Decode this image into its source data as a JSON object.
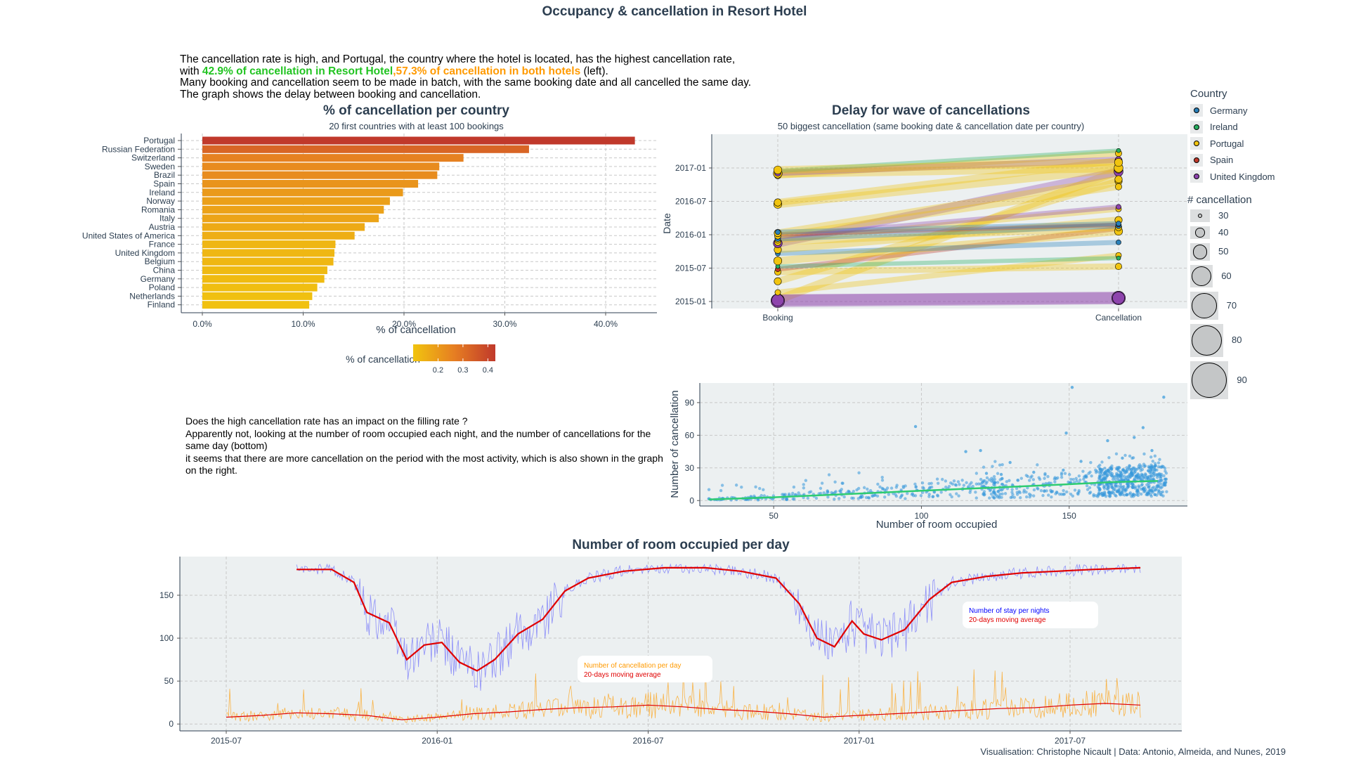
{
  "title": "Occupancy & cancellation in Resort Hotel",
  "intro": {
    "line1": "The cancellation rate is high, and Portugal, the country where the hotel is located, has the highest cancellation rate,",
    "line2_prefix": "with ",
    "line2_green": "42.9% of cancellation in Resort Hotel",
    "line2_sep": ",",
    "line2_orange": "57.3% of cancellation in both hotels",
    "line2_suffix": " (left).",
    "line3": "Many booking and cancellation seem to be made in batch, with the same booking date and all cancelled the same day.",
    "line4": "The graph shows the delay between booking and cancellation."
  },
  "middle_text": {
    "line1": "Does the high cancellation rate has an impact on the filling rate ?",
    "line2": "Apparently not, looking at the number of room occupied each night, and the number of cancellations for the same day (bottom)",
    "line3": "it seems that there are more cancellation on the period with the most activity, which is also shown in the graph on the right."
  },
  "caption": "Visualisation: Christophe Nicault | Data: Antonio, Almeida, and Nunes, 2019",
  "chart_data": [
    {
      "type": "bar",
      "orientation": "horizontal",
      "title": "% of cancellation per country",
      "subtitle": "20 first countries with at least 100 bookings",
      "xlabel": "% of cancellation",
      "categories": [
        "Portugal",
        "Russian Federation",
        "Switzerland",
        "Sweden",
        "Brazil",
        "Spain",
        "Ireland",
        "Norway",
        "Romania",
        "Italy",
        "Austria",
        "United States of America",
        "France",
        "United Kingdom",
        "Belgium",
        "China",
        "Germany",
        "Poland",
        "Netherlands",
        "Finland"
      ],
      "values": [
        0.429,
        0.324,
        0.259,
        0.235,
        0.233,
        0.214,
        0.199,
        0.186,
        0.18,
        0.175,
        0.161,
        0.151,
        0.132,
        0.131,
        0.13,
        0.124,
        0.121,
        0.114,
        0.109,
        0.106
      ],
      "xlim": [
        0,
        0.45
      ],
      "xticks": [
        "0.0%",
        "10.0%",
        "20.0%",
        "30.0%",
        "40.0%"
      ],
      "xtick_values": [
        0,
        0.1,
        0.2,
        0.3,
        0.4
      ],
      "colorbar": {
        "title": "% of cancellation",
        "ticks": [
          "0.2",
          "0.3",
          "0.4"
        ],
        "low": "#f1c40f",
        "mid": "#e67e22",
        "high": "#c0392b"
      }
    },
    {
      "type": "line",
      "title": "Delay for wave of cancellations",
      "subtitle": "50 biggest cancellation (same booking date & cancellation date per country)",
      "ylabel": "Date",
      "xcategories": [
        "Booking",
        "Cancellation"
      ],
      "yticks": [
        "2015-01",
        "2015-07",
        "2016-01",
        "2016-07",
        "2017-01"
      ],
      "legend_country": {
        "title": "Country",
        "items": [
          {
            "name": "Germany",
            "color": "#2980b9"
          },
          {
            "name": "Ireland",
            "color": "#27ae60"
          },
          {
            "name": "Portugal",
            "color": "#f1c40f"
          },
          {
            "name": "Spain",
            "color": "#c0392b"
          },
          {
            "name": "United Kingdom",
            "color": "#8e44ad"
          }
        ]
      },
      "legend_size": {
        "title": "# cancellation",
        "items": [
          "30",
          "40",
          "50",
          "60",
          "70",
          "80",
          "90"
        ]
      },
      "waves": [
        {
          "booking": "2015-01-10",
          "cancellation": "2016-12-15",
          "country": "Portugal",
          "n": 60
        },
        {
          "booking": "2015-01-05",
          "cancellation": "2015-01-20",
          "country": "United Kingdom",
          "n": 90
        },
        {
          "booking": "2015-01-08",
          "cancellation": "2015-01-20",
          "country": "United Kingdom",
          "n": 80
        },
        {
          "booking": "2015-02-20",
          "cancellation": "2015-09-10",
          "country": "Portugal",
          "n": 40
        },
        {
          "booking": "2015-04-20",
          "cancellation": "2016-10-20",
          "country": "Portugal",
          "n": 50
        },
        {
          "booking": "2015-06-10",
          "cancellation": "2015-07-10",
          "country": "Portugal",
          "n": 45
        },
        {
          "booking": "2015-06-25",
          "cancellation": "2016-02-05",
          "country": "Spain",
          "n": 35
        },
        {
          "booking": "2015-07-10",
          "cancellation": "2015-08-25",
          "country": "Ireland",
          "n": 30
        },
        {
          "booking": "2015-08-10",
          "cancellation": "2016-01-20",
          "country": "Portugal",
          "n": 55
        },
        {
          "booking": "2015-09-20",
          "cancellation": "2015-11-20",
          "country": "Germany",
          "n": 35
        },
        {
          "booking": "2015-10-10",
          "cancellation": "2016-03-20",
          "country": "Portugal",
          "n": 50
        },
        {
          "booking": "2015-11-15",
          "cancellation": "2016-12-10",
          "country": "United Kingdom",
          "n": 60
        },
        {
          "booking": "2015-11-20",
          "cancellation": "2016-02-10",
          "country": "Portugal",
          "n": 45
        },
        {
          "booking": "2015-12-01",
          "cancellation": "2016-05-20",
          "country": "Portugal",
          "n": 40
        },
        {
          "booking": "2015-12-10",
          "cancellation": "2016-02-20",
          "country": "Germany",
          "n": 40
        },
        {
          "booking": "2015-12-20",
          "cancellation": "2016-06-01",
          "country": "United Kingdom",
          "n": 35
        },
        {
          "booking": "2015-12-25",
          "cancellation": "2016-09-20",
          "country": "Portugal",
          "n": 45
        },
        {
          "booking": "2016-01-02",
          "cancellation": "2016-02-25",
          "country": "Spain",
          "n": 30
        },
        {
          "booking": "2016-01-10",
          "cancellation": "2016-10-30",
          "country": "Portugal",
          "n": 50
        },
        {
          "booking": "2016-01-15",
          "cancellation": "2016-03-01",
          "country": "Germany",
          "n": 35
        },
        {
          "booking": "2016-06-15",
          "cancellation": "2016-12-25",
          "country": "Portugal",
          "n": 55
        },
        {
          "booking": "2016-06-25",
          "cancellation": "2017-02-10",
          "country": "Portugal",
          "n": 50
        },
        {
          "booking": "2016-11-20",
          "cancellation": "2017-03-20",
          "country": "Portugal",
          "n": 45
        },
        {
          "booking": "2016-12-01",
          "cancellation": "2017-01-01",
          "country": "Portugal",
          "n": 60
        },
        {
          "booking": "2016-12-05",
          "cancellation": "2017-02-15",
          "country": "United Kingdom",
          "n": 45
        },
        {
          "booking": "2016-12-15",
          "cancellation": "2017-04-05",
          "country": "Ireland",
          "n": 30
        },
        {
          "booking": "2016-12-20",
          "cancellation": "2017-02-01",
          "country": "Portugal",
          "n": 55
        }
      ]
    },
    {
      "type": "scatter",
      "xlabel": "Number of room occupied",
      "ylabel": "Number of cancellation",
      "xlim": [
        25,
        190
      ],
      "ylim": [
        -5,
        108
      ],
      "xticks": [
        50,
        100,
        150
      ],
      "yticks": [
        0,
        30,
        60,
        90
      ],
      "trend": [
        [
          28,
          1
        ],
        [
          50,
          3
        ],
        [
          75,
          6
        ],
        [
          100,
          9
        ],
        [
          125,
          12
        ],
        [
          150,
          15
        ],
        [
          165,
          17
        ],
        [
          180,
          18
        ]
      ],
      "outliers": [
        [
          98,
          68
        ],
        [
          115,
          45
        ],
        [
          120,
          46
        ],
        [
          122,
          25
        ],
        [
          127,
          24
        ],
        [
          130,
          35
        ],
        [
          138,
          26
        ],
        [
          148,
          28
        ],
        [
          149,
          62
        ],
        [
          151,
          104
        ],
        [
          154,
          36
        ],
        [
          163,
          55
        ],
        [
          168,
          39
        ],
        [
          172,
          58
        ],
        [
          175,
          67
        ],
        [
          178,
          46
        ],
        [
          182,
          95
        ]
      ]
    },
    {
      "type": "line",
      "title": "Number of room occupied per day",
      "xticks": [
        "2015-07",
        "2016-01",
        "2016-07",
        "2017-01",
        "2017-07"
      ],
      "yticks": [
        0,
        50,
        100,
        150
      ],
      "ylim": [
        -8,
        195
      ],
      "series": [
        {
          "name": "Number of stay per nights",
          "color": "#4040ff"
        },
        {
          "name": "20-days moving average",
          "color": "#e00000",
          "points": [
            [
              "2015-09-01",
              180
            ],
            [
              "2015-10-01",
              180
            ],
            [
              "2015-10-20",
              165
            ],
            [
              "2015-11-01",
              130
            ],
            [
              "2015-11-20",
              118
            ],
            [
              "2015-12-05",
              75
            ],
            [
              "2015-12-20",
              92
            ],
            [
              "2016-01-05",
              95
            ],
            [
              "2016-01-20",
              72
            ],
            [
              "2016-02-05",
              62
            ],
            [
              "2016-02-20",
              75
            ],
            [
              "2016-03-10",
              105
            ],
            [
              "2016-04-01",
              122
            ],
            [
              "2016-04-20",
              155
            ],
            [
              "2016-05-10",
              170
            ],
            [
              "2016-06-10",
              178
            ],
            [
              "2016-07-15",
              182
            ],
            [
              "2016-08-20",
              182
            ],
            [
              "2016-09-20",
              178
            ],
            [
              "2016-10-20",
              170
            ],
            [
              "2016-11-10",
              140
            ],
            [
              "2016-11-25",
              100
            ],
            [
              "2016-12-10",
              90
            ],
            [
              "2016-12-25",
              120
            ],
            [
              "2017-01-05",
              105
            ],
            [
              "2017-01-20",
              98
            ],
            [
              "2017-02-10",
              110
            ],
            [
              "2017-03-01",
              145
            ],
            [
              "2017-03-20",
              165
            ],
            [
              "2017-04-20",
              172
            ],
            [
              "2017-05-20",
              176
            ],
            [
              "2017-06-20",
              178
            ],
            [
              "2017-07-20",
              180
            ],
            [
              "2017-08-31",
              182
            ]
          ]
        },
        {
          "name": "Number of cancellation per day",
          "color": "#ff9a00"
        },
        {
          "name": "20-days moving average",
          "color": "#e00000",
          "points": [
            [
              "2015-07-01",
              8
            ],
            [
              "2015-08-01",
              10
            ],
            [
              "2015-09-01",
              13
            ],
            [
              "2015-10-01",
              12
            ],
            [
              "2015-11-01",
              10
            ],
            [
              "2015-12-01",
              5
            ],
            [
              "2016-01-01",
              8
            ],
            [
              "2016-02-01",
              12
            ],
            [
              "2016-03-01",
              14
            ],
            [
              "2016-04-01",
              17
            ],
            [
              "2016-05-01",
              19
            ],
            [
              "2016-06-01",
              20
            ],
            [
              "2016-07-01",
              22
            ],
            [
              "2016-08-01",
              20
            ],
            [
              "2016-09-01",
              17
            ],
            [
              "2016-10-01",
              15
            ],
            [
              "2016-11-01",
              12
            ],
            [
              "2016-12-01",
              8
            ],
            [
              "2017-01-01",
              10
            ],
            [
              "2017-02-01",
              12
            ],
            [
              "2017-03-01",
              14
            ],
            [
              "2017-04-01",
              16
            ],
            [
              "2017-05-01",
              18
            ],
            [
              "2017-06-01",
              19
            ],
            [
              "2017-07-01",
              22
            ],
            [
              "2017-08-01",
              24
            ],
            [
              "2017-08-31",
              22
            ]
          ]
        }
      ],
      "annotations": [
        {
          "line1": "Number of stay per nights",
          "line2": "20-days moving average"
        },
        {
          "line1": "Number of cancellation per day",
          "line2": "20-days moving average"
        }
      ]
    }
  ]
}
